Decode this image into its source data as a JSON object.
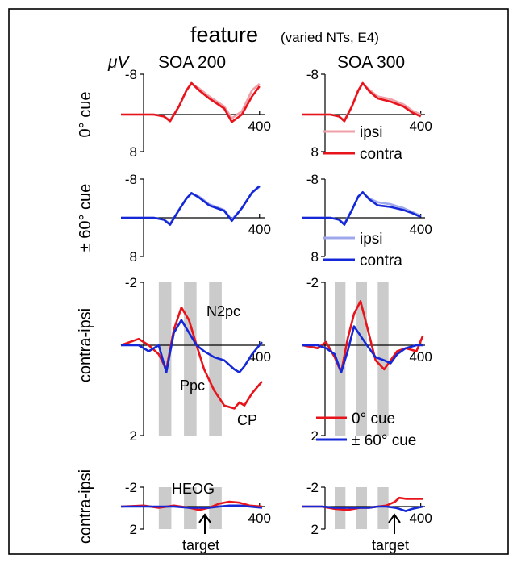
{
  "figure": {
    "title_main": "feature",
    "title_sub": "(varied NTs, E4)",
    "unit_label": "μV",
    "columns": [
      "SOA 200",
      "SOA 300"
    ],
    "row_labels": [
      "0° cue",
      "± 60° cue",
      "contra-ipsi",
      "contra-ipsi"
    ],
    "legends": {
      "red_pair": [
        "ipsi",
        "contra"
      ],
      "blue_pair": [
        "ipsi",
        "contra"
      ],
      "difference": [
        "0° cue",
        "± 60° cue"
      ]
    },
    "annotations": {
      "n2pc": "N2pc",
      "ppc": "Ppc",
      "cp": "CP",
      "heog": "HEOG",
      "target": "target"
    },
    "colors": {
      "red": "#e8141c",
      "pink": "#f0a0a8",
      "blue": "#1428d8",
      "lightblue": "#a0a8ec",
      "shade": "#cbcbcb"
    }
  },
  "chart_data": [
    {
      "type": "line",
      "panel": "0-cue-soa200",
      "ytick_labels": [
        "-8",
        "8"
      ],
      "xtick_label": "400",
      "x_range": [
        -150,
        420
      ],
      "ylim": [
        -10,
        10
      ],
      "series": [
        {
          "name": "ipsi",
          "color": "#f0a0a8",
          "x": [
            -150,
            -20,
            20,
            45,
            80,
            110,
            130,
            160,
            200,
            260,
            290,
            330,
            370,
            400
          ],
          "y": [
            0,
            0,
            0.5,
            1.5,
            -2,
            -6,
            -7.6,
            -6.5,
            -4.5,
            -2,
            1,
            -0.8,
            -6,
            -7.6
          ]
        },
        {
          "name": "contra",
          "color": "#e8141c",
          "x": [
            -150,
            -20,
            20,
            45,
            80,
            110,
            130,
            160,
            200,
            260,
            290,
            330,
            370,
            400
          ],
          "y": [
            0,
            0,
            0.5,
            1.8,
            -2,
            -6,
            -7.8,
            -6,
            -4,
            -1.5,
            2,
            0,
            -4.5,
            -7
          ]
        }
      ]
    },
    {
      "type": "line",
      "panel": "0-cue-soa300",
      "ytick_labels": [
        "-8",
        "8"
      ],
      "xtick_label": "400",
      "x_range": [
        -150,
        420
      ],
      "ylim": [
        -10,
        10
      ],
      "series": [
        {
          "name": "ipsi",
          "color": "#f0a0a8",
          "x": [
            -150,
            -20,
            20,
            45,
            80,
            110,
            130,
            160,
            200,
            260,
            320,
            360,
            400
          ],
          "y": [
            0,
            0,
            0.5,
            1.5,
            -2,
            -6,
            -7.6,
            -6.2,
            -4.5,
            -3.8,
            -2.5,
            -1,
            0
          ]
        },
        {
          "name": "contra",
          "color": "#e8141c",
          "x": [
            -150,
            -20,
            20,
            45,
            80,
            110,
            130,
            160,
            200,
            260,
            320,
            360,
            400
          ],
          "y": [
            0,
            0,
            0.5,
            1.8,
            -2,
            -6,
            -7.8,
            -5.8,
            -4,
            -3.2,
            -2,
            -0.5,
            0.5
          ]
        }
      ]
    },
    {
      "type": "line",
      "panel": "60-cue-soa200",
      "ytick_labels": [
        "-8",
        "8"
      ],
      "xtick_label": "400",
      "x_range": [
        -150,
        420
      ],
      "ylim": [
        -10,
        10
      ],
      "series": [
        {
          "name": "ipsi",
          "color": "#a0a8ec",
          "x": [
            -150,
            -20,
            20,
            45,
            80,
            110,
            130,
            160,
            200,
            260,
            290,
            330,
            370,
            400
          ],
          "y": [
            0,
            0,
            0.5,
            1.5,
            -2,
            -5,
            -6.2,
            -5.5,
            -3.5,
            -2,
            0.5,
            -2.5,
            -6.5,
            -8
          ]
        },
        {
          "name": "contra",
          "color": "#1428d8",
          "x": [
            -150,
            -20,
            20,
            45,
            80,
            110,
            130,
            160,
            200,
            260,
            290,
            330,
            370,
            400
          ],
          "y": [
            0,
            0,
            0.5,
            1.8,
            -2,
            -5,
            -6.4,
            -5.2,
            -3.2,
            -1.8,
            0.8,
            -2.5,
            -6.5,
            -8.2
          ]
        }
      ]
    },
    {
      "type": "line",
      "panel": "60-cue-soa300",
      "ytick_labels": [
        "-8",
        "8"
      ],
      "xtick_label": "400",
      "x_range": [
        -150,
        420
      ],
      "ylim": [
        -10,
        10
      ],
      "series": [
        {
          "name": "ipsi",
          "color": "#a0a8ec",
          "x": [
            -150,
            -20,
            20,
            45,
            80,
            110,
            130,
            160,
            200,
            260,
            320,
            360,
            400
          ],
          "y": [
            0,
            0,
            0.5,
            1.5,
            -2,
            -5.5,
            -6.5,
            -5,
            -4,
            -3.5,
            -2.5,
            -1.5,
            -0.5
          ]
        },
        {
          "name": "contra",
          "color": "#1428d8",
          "x": [
            -150,
            -20,
            20,
            45,
            80,
            110,
            130,
            160,
            200,
            260,
            320,
            360,
            400
          ],
          "y": [
            0,
            0,
            0.5,
            1.8,
            -2,
            -5.5,
            -6.6,
            -4.8,
            -3.2,
            -2.8,
            -2,
            -1.2,
            -0.2
          ]
        }
      ]
    },
    {
      "type": "line",
      "panel": "diff-soa200",
      "ytick_labels": [
        "-2",
        "2"
      ],
      "xtick_label": "400",
      "x_range": [
        -150,
        420
      ],
      "ylim": [
        -2,
        3
      ],
      "shaded_intervals": [
        [
          0,
          50
        ],
        [
          100,
          150
        ],
        [
          200,
          250
        ]
      ],
      "series": [
        {
          "name": "0° cue",
          "color": "#e8141c",
          "x": [
            -150,
            -80,
            -40,
            0,
            30,
            60,
            90,
            120,
            150,
            180,
            220,
            260,
            300,
            320,
            340,
            370,
            410
          ],
          "y": [
            0,
            -0.2,
            0,
            0.3,
            0.8,
            -0.5,
            -1.2,
            -0.8,
            0,
            0.8,
            1.5,
            2.0,
            2.1,
            1.9,
            2.0,
            1.6,
            1.2
          ]
        },
        {
          "name": "± 60° cue",
          "color": "#1428d8",
          "x": [
            -150,
            -80,
            -40,
            0,
            30,
            60,
            90,
            120,
            150,
            180,
            220,
            260,
            300,
            320,
            340,
            370,
            410
          ],
          "y": [
            0,
            0,
            0.2,
            0,
            0.9,
            -0.4,
            -0.8,
            -0.4,
            0,
            0.2,
            0.4,
            0.5,
            0.8,
            0.9,
            0.7,
            0.3,
            -0.1
          ]
        }
      ]
    },
    {
      "type": "line",
      "panel": "diff-soa300",
      "ytick_labels": [
        "-2",
        "2"
      ],
      "xtick_label": "400",
      "x_range": [
        -150,
        420
      ],
      "ylim": [
        -2,
        3
      ],
      "shaded_intervals": [
        [
          0,
          50
        ],
        [
          100,
          150
        ],
        [
          200,
          250
        ]
      ],
      "series": [
        {
          "name": "0° cue",
          "color": "#e8141c",
          "x": [
            -150,
            -80,
            -40,
            0,
            30,
            60,
            90,
            120,
            150,
            190,
            230,
            260,
            290,
            330,
            380,
            410
          ],
          "y": [
            0,
            0.1,
            -0.1,
            0.4,
            0.9,
            -0.2,
            -1.0,
            -1.4,
            -0.6,
            0.5,
            0.8,
            0.5,
            0.2,
            0.1,
            0.2,
            -0.3
          ]
        },
        {
          "name": "± 60° cue",
          "color": "#1428d8",
          "x": [
            -150,
            -80,
            -40,
            0,
            30,
            60,
            90,
            120,
            150,
            190,
            230,
            260,
            290,
            330,
            380,
            410
          ],
          "y": [
            0,
            0,
            0.1,
            0.3,
            0.9,
            0.2,
            -0.6,
            -0.3,
            0,
            0.4,
            0.5,
            0.6,
            0.3,
            0.1,
            0,
            0
          ]
        }
      ]
    },
    {
      "type": "line",
      "panel": "heog-soa200",
      "ytick_labels": [
        "-2",
        "2"
      ],
      "xtick_label": "400",
      "x_range": [
        -150,
        420
      ],
      "ylim": [
        -2,
        2
      ],
      "shaded_intervals": [
        [
          0,
          50
        ],
        [
          100,
          150
        ],
        [
          200,
          250
        ]
      ],
      "series": [
        {
          "name": "0° cue",
          "color": "#e8141c",
          "x": [
            -150,
            -60,
            0,
            60,
            120,
            160,
            200,
            240,
            280,
            320,
            360,
            410
          ],
          "y": [
            0,
            -0.1,
            0.1,
            -0.1,
            0.1,
            0.3,
            0.1,
            -0.3,
            -0.5,
            -0.4,
            -0.1,
            0
          ]
        },
        {
          "name": "± 60° cue",
          "color": "#1428d8",
          "x": [
            -150,
            -60,
            0,
            60,
            120,
            160,
            200,
            240,
            280,
            320,
            360,
            410
          ],
          "y": [
            0,
            0,
            0,
            0,
            0.1,
            0.1,
            0.1,
            0,
            -0.1,
            -0.1,
            0,
            0.1
          ]
        }
      ]
    },
    {
      "type": "line",
      "panel": "heog-soa300",
      "ytick_labels": [
        "-2",
        "2"
      ],
      "xtick_label": "400",
      "x_range": [
        -150,
        420
      ],
      "ylim": [
        -2,
        2
      ],
      "shaded_intervals": [
        [
          0,
          50
        ],
        [
          100,
          150
        ],
        [
          200,
          250
        ]
      ],
      "series": [
        {
          "name": "0° cue",
          "color": "#e8141c",
          "x": [
            -150,
            -60,
            0,
            60,
            120,
            160,
            200,
            240,
            280,
            300,
            330,
            360,
            410
          ],
          "y": [
            0,
            0,
            0.2,
            0.3,
            0.1,
            0.1,
            0,
            -0.1,
            -0.5,
            -0.9,
            -0.8,
            -0.8,
            -0.8
          ]
        },
        {
          "name": "± 60° cue",
          "color": "#1428d8",
          "x": [
            -150,
            -60,
            0,
            60,
            120,
            160,
            200,
            240,
            280,
            300,
            330,
            360,
            410
          ],
          "y": [
            0,
            0,
            0.1,
            0.1,
            0.1,
            0.1,
            0,
            0,
            0.1,
            0.2,
            0.4,
            0.2,
            0
          ]
        }
      ]
    }
  ]
}
